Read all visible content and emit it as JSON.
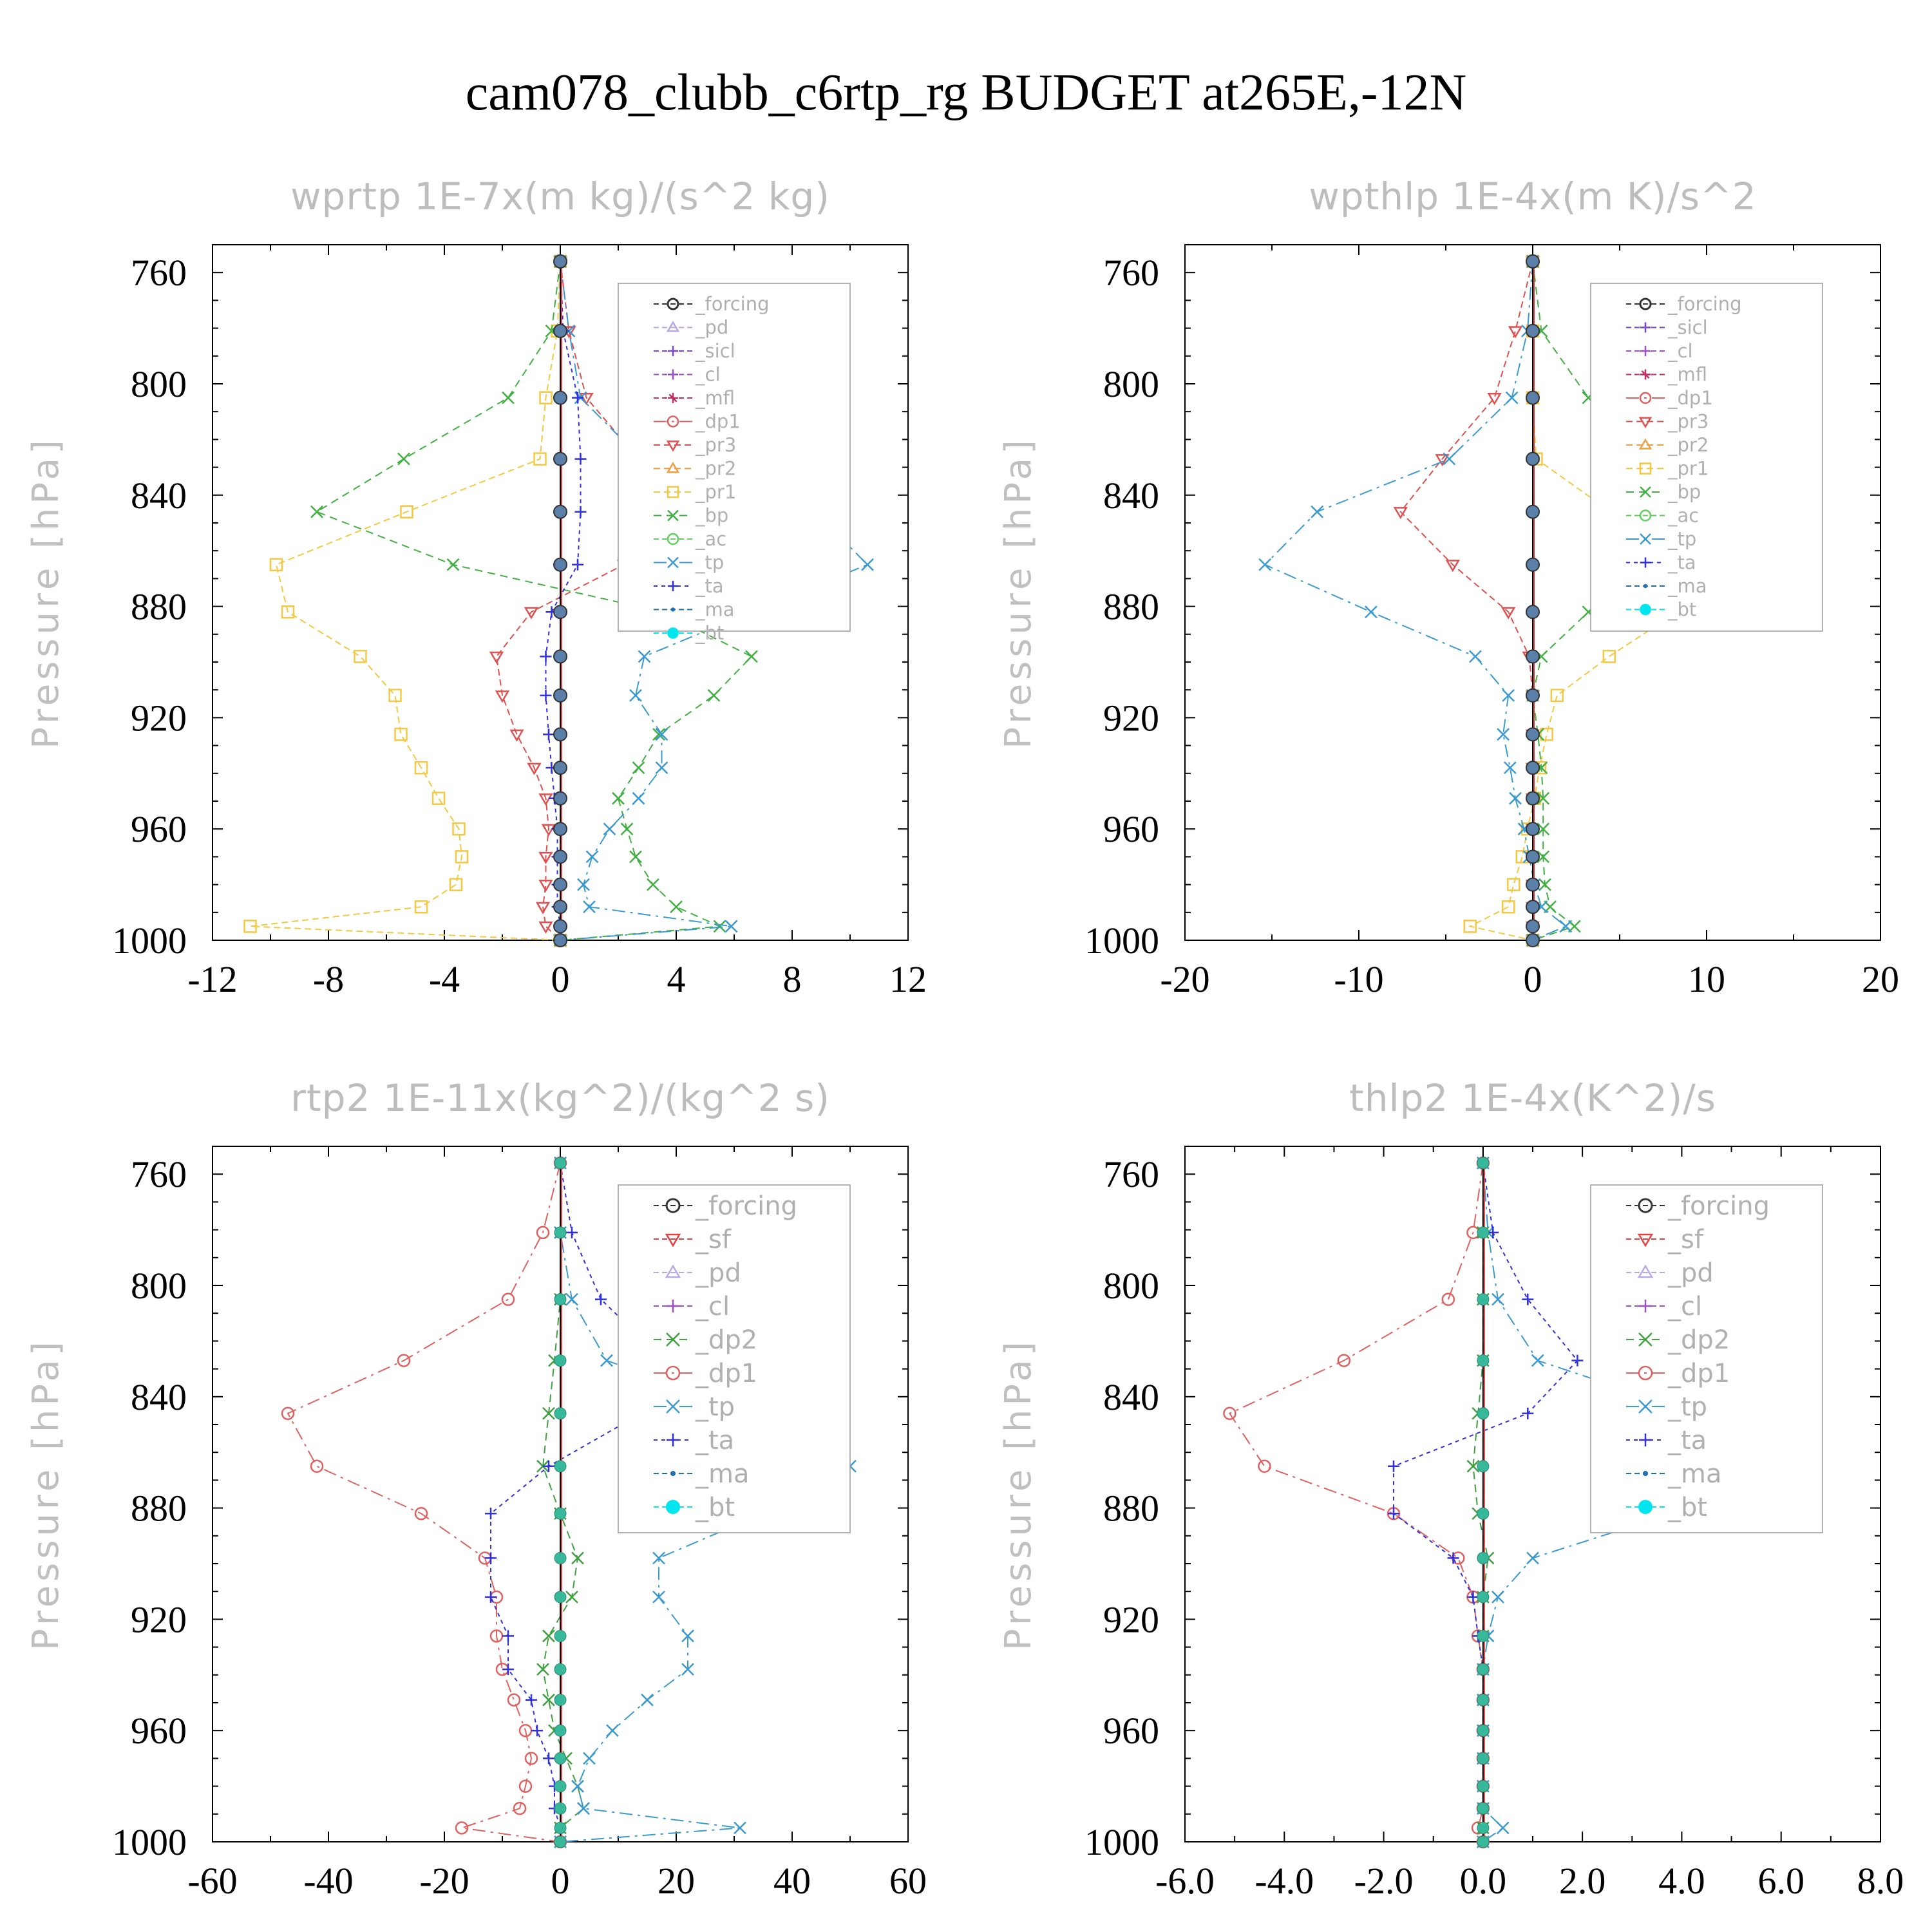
{
  "title": "cam078_clubb_c6rtp_rg  BUDGET at265E,-12N",
  "colors": {
    "_forcing": "#333333",
    "_pd": "#b8a8e8",
    "_sicl": "#7a46c8",
    "_cl": "#9a50c0",
    "_mfl": "#c03060",
    "_dp1": "#e06060",
    "_pr3": "#e05050",
    "_pr2": "#f0a040",
    "_pr1": "#f5c842",
    "_bp": "#40b040",
    "_ac": "#60d060",
    "_tp": "#3a9ad0",
    "_ta": "#3030e0",
    "_ma": "#2070b0",
    "_bt": "#00e5ee",
    "_sf": "#e04040",
    "_dp2": "#40a040"
  },
  "chart_data": [
    {
      "type": "line",
      "title": "wprtp  1E-7x(m kg)/(s^2 kg)",
      "ylabel": "Pressure [hPa]",
      "xlim": [
        -12,
        12
      ],
      "ylim": [
        1000,
        750
      ],
      "xticks": [
        -12,
        -8,
        -4,
        0,
        4,
        8,
        12
      ],
      "xtick_labels": [
        "-12",
        "-8",
        "-4",
        "0",
        "4",
        "8",
        "12"
      ],
      "yticks": [
        760,
        800,
        840,
        880,
        920,
        960,
        1000
      ],
      "ytick_labels": [
        "760",
        "800",
        "840",
        "880",
        "920",
        "960",
        "1000"
      ],
      "legend": [
        "_forcing",
        "_pd",
        "_sicl",
        "_cl",
        "_mfl",
        "_dp1",
        "_pr3",
        "_pr2",
        "_pr1",
        "_bp",
        "_ac",
        "_tp",
        "_ta",
        "_ma",
        "_bt"
      ],
      "y": [
        756,
        781,
        805,
        827,
        846,
        865,
        882,
        898,
        912,
        926,
        938,
        949,
        960,
        970,
        980,
        988,
        995,
        1000
      ],
      "series": [
        {
          "name": "_pr3",
          "values": [
            0,
            0.3,
            0.9,
            2.7,
            4.1,
            2.2,
            -1,
            -2.2,
            -2,
            -1.5,
            -0.9,
            -0.5,
            -0.4,
            -0.5,
            -0.5,
            -0.6,
            -0.5,
            0
          ]
        },
        {
          "name": "_pr1",
          "values": [
            0,
            -0.1,
            -0.5,
            -0.7,
            -5.3,
            -9.8,
            -9.4,
            -6.9,
            -5.7,
            -5.5,
            -4.8,
            -4.2,
            -3.5,
            -3.4,
            -3.6,
            -4.8,
            -10.7,
            0
          ]
        },
        {
          "name": "_bp",
          "values": [
            0,
            -0.3,
            -1.8,
            -5.4,
            -8.4,
            -3.7,
            3.5,
            6.6,
            5.3,
            3.4,
            2.7,
            2,
            2.3,
            2.6,
            3.2,
            4,
            5.5,
            0
          ]
        },
        {
          "name": "_tp",
          "values": [
            0,
            0.3,
            0.7,
            2.8,
            8.8,
            10.6,
            6.6,
            2.9,
            2.6,
            3.5,
            3.5,
            2.7,
            1.7,
            1.1,
            0.8,
            1,
            5.9,
            0
          ]
        },
        {
          "name": "_ta",
          "values": [
            0,
            0.1,
            0.6,
            0.7,
            0.7,
            0.6,
            -0.3,
            -0.5,
            -0.5,
            -0.4,
            -0.3,
            -0.2,
            -0.1,
            -0.1,
            -0.1,
            -0.1,
            0,
            0
          ]
        }
      ]
    },
    {
      "type": "line",
      "title": "wpthlp  1E-4x(m K)/s^2",
      "ylabel": "Pressure [hPa]",
      "xlim": [
        -20,
        20
      ],
      "ylim": [
        1000,
        750
      ],
      "xticks": [
        -20,
        -10,
        0,
        10,
        20
      ],
      "xtick_labels": [
        "-20",
        "-10",
        "0",
        "10",
        "20"
      ],
      "yticks": [
        760,
        800,
        840,
        880,
        920,
        960,
        1000
      ],
      "ytick_labels": [
        "760",
        "800",
        "840",
        "880",
        "920",
        "960",
        "1000"
      ],
      "legend": [
        "_forcing",
        "_sicl",
        "_cl",
        "_mfl",
        "_dp1",
        "_pr3",
        "_pr2",
        "_pr1",
        "_bp",
        "_ac",
        "_tp",
        "_ta",
        "_ma",
        "_bt"
      ],
      "y": [
        756,
        781,
        805,
        827,
        846,
        865,
        882,
        898,
        912,
        926,
        938,
        949,
        960,
        970,
        980,
        988,
        995,
        1000
      ],
      "series": [
        {
          "name": "_pr3",
          "values": [
            0,
            -1,
            -2.2,
            -5.2,
            -7.6,
            -4.6,
            -1.4,
            -0.2,
            0,
            0,
            0,
            0,
            0,
            0,
            0,
            0,
            0,
            0
          ]
        },
        {
          "name": "_pr1",
          "values": [
            0,
            0,
            0,
            0.2,
            4.5,
            9.4,
            8.3,
            4.4,
            1.4,
            0.8,
            0.4,
            0.1,
            -0.3,
            -0.6,
            -1.1,
            -1.4,
            -3.6,
            0
          ]
        },
        {
          "name": "_bp",
          "values": [
            0,
            0.5,
            3.2,
            9,
            16,
            12.2,
            3.2,
            0.5,
            0,
            0.3,
            0.5,
            0.6,
            0.6,
            0.6,
            0.7,
            1,
            2.4,
            0
          ]
        },
        {
          "name": "_tp",
          "values": [
            0,
            -0.3,
            -1.2,
            -4.8,
            -12.4,
            -15.4,
            -9.3,
            -3.3,
            -1.4,
            -1.7,
            -1.3,
            -1,
            -0.5,
            -0.2,
            0.1,
            0.5,
            1.9,
            0
          ]
        },
        {
          "name": "_ta",
          "values": [
            0,
            0,
            0,
            0,
            0,
            0,
            0,
            0,
            0,
            0,
            0,
            0,
            0,
            0,
            0,
            0,
            0,
            0
          ]
        }
      ]
    },
    {
      "type": "line",
      "title": "rtp2  1E-11x(kg^2)/(kg^2 s)",
      "ylabel": "Pressure [hPa]",
      "xlim": [
        -60,
        60
      ],
      "ylim": [
        1000,
        750
      ],
      "xticks": [
        -60,
        -40,
        -20,
        0,
        20,
        40,
        60
      ],
      "xtick_labels": [
        "-60",
        "-40",
        "-20",
        "0",
        "20",
        "40",
        "60"
      ],
      "yticks": [
        760,
        800,
        840,
        880,
        920,
        960,
        1000
      ],
      "ytick_labels": [
        "760",
        "800",
        "840",
        "880",
        "920",
        "960",
        "1000"
      ],
      "legend": [
        "_forcing",
        "_sf",
        "_pd",
        "_cl",
        "_dp2",
        "_dp1",
        "_tp",
        "_ta",
        "_ma",
        "_bt"
      ],
      "y": [
        756,
        781,
        805,
        827,
        846,
        865,
        882,
        898,
        912,
        926,
        938,
        949,
        960,
        970,
        980,
        988,
        995,
        1000
      ],
      "series": [
        {
          "name": "_dp1",
          "values": [
            0,
            -3,
            -9,
            -27,
            -47,
            -42,
            -24,
            -13,
            -11,
            -11,
            -10,
            -8,
            -6,
            -5,
            -6,
            -7,
            -17,
            0
          ]
        },
        {
          "name": "_dp2",
          "values": [
            0,
            0,
            0,
            -1,
            -2,
            -3,
            0,
            3,
            2,
            -2,
            -3,
            -2,
            -1,
            1,
            3,
            4,
            0,
            0
          ]
        },
        {
          "name": "_tp",
          "values": [
            0,
            0,
            2,
            8,
            34,
            50,
            35,
            17,
            17,
            22,
            22,
            15,
            9,
            5,
            3,
            4,
            31,
            0
          ]
        },
        {
          "name": "_ta",
          "values": [
            0,
            2,
            7,
            18,
            14,
            -2,
            -12,
            -12,
            -12,
            -9,
            -9,
            -5,
            -4,
            -2,
            -1,
            -1,
            0,
            0
          ]
        }
      ]
    },
    {
      "type": "line",
      "title": "thlp2  1E-4x(K^2)/s",
      "ylabel": "Pressure [hPa]",
      "xlim": [
        -6,
        8
      ],
      "ylim": [
        1000,
        750
      ],
      "xticks": [
        -6,
        -4,
        -2,
        0,
        2,
        4,
        6,
        8
      ],
      "xtick_labels": [
        "-6.0",
        "-4.0",
        "-2.0",
        "0.0",
        "2.0",
        "4.0",
        "6.0",
        "8.0"
      ],
      "yticks": [
        760,
        800,
        840,
        880,
        920,
        960,
        1000
      ],
      "ytick_labels": [
        "760",
        "800",
        "840",
        "880",
        "920",
        "960",
        "1000"
      ],
      "legend": [
        "_forcing",
        "_sf",
        "_pd",
        "_cl",
        "_dp2",
        "_dp1",
        "_tp",
        "_ta",
        "_ma",
        "_bt"
      ],
      "y": [
        756,
        781,
        805,
        827,
        846,
        865,
        882,
        898,
        912,
        926,
        938,
        949,
        960,
        970,
        980,
        988,
        995,
        1000
      ],
      "series": [
        {
          "name": "_dp1",
          "values": [
            0,
            -0.2,
            -0.7,
            -2.8,
            -5.1,
            -4.4,
            -1.8,
            -0.5,
            -0.2,
            -0.1,
            0,
            0,
            0,
            0,
            0,
            0,
            -0.1,
            0
          ]
        },
        {
          "name": "_dp2",
          "values": [
            0,
            0,
            0,
            0,
            -0.1,
            -0.2,
            -0.1,
            0.1,
            0,
            0,
            0,
            0,
            0,
            0,
            0,
            0,
            0,
            0
          ]
        },
        {
          "name": "_tp",
          "values": [
            0,
            0.1,
            0.3,
            1.1,
            4.3,
            6.7,
            3.8,
            1,
            0.3,
            0.1,
            0,
            0,
            0,
            0,
            0,
            0,
            0.4,
            0
          ]
        },
        {
          "name": "_ta",
          "values": [
            0,
            0.2,
            0.9,
            1.9,
            0.9,
            -1.8,
            -1.8,
            -0.6,
            -0.2,
            -0.1,
            0,
            0,
            0,
            0,
            0,
            0,
            0,
            0
          ]
        }
      ]
    }
  ]
}
